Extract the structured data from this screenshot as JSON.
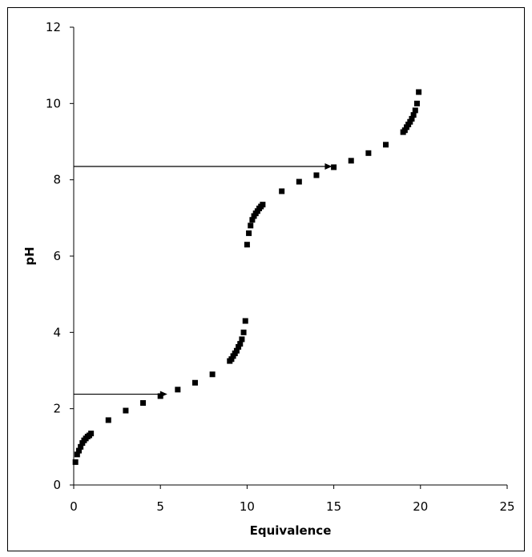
{
  "chart_data": {
    "type": "scatter",
    "title": "",
    "xlabel": "Equivalence",
    "ylabel": "pH",
    "xlim": [
      0,
      25
    ],
    "ylim": [
      0,
      12
    ],
    "xticks": [
      0,
      5,
      10,
      15,
      20,
      25
    ],
    "yticks": [
      0,
      2,
      4,
      6,
      8,
      10,
      12
    ],
    "grid": false,
    "marker_color": "#000000",
    "series": [
      {
        "points": [
          [
            0.1,
            0.6
          ],
          [
            0.2,
            0.8
          ],
          [
            0.3,
            0.9
          ],
          [
            0.4,
            1.0
          ],
          [
            0.5,
            1.1
          ],
          [
            0.6,
            1.17
          ],
          [
            0.7,
            1.22
          ],
          [
            0.8,
            1.27
          ],
          [
            0.9,
            1.3
          ],
          [
            1.0,
            1.35
          ],
          [
            2.0,
            1.7
          ],
          [
            3.0,
            1.95
          ],
          [
            4.0,
            2.15
          ],
          [
            5.0,
            2.33
          ],
          [
            6.0,
            2.5
          ],
          [
            7.0,
            2.68
          ],
          [
            8.0,
            2.9
          ],
          [
            9.0,
            3.25
          ],
          [
            9.1,
            3.3
          ],
          [
            9.2,
            3.38
          ],
          [
            9.3,
            3.45
          ],
          [
            9.4,
            3.52
          ],
          [
            9.5,
            3.62
          ],
          [
            9.6,
            3.7
          ],
          [
            9.7,
            3.82
          ],
          [
            9.8,
            4.0
          ],
          [
            9.9,
            4.3
          ],
          [
            10.0,
            6.3
          ],
          [
            10.1,
            6.6
          ],
          [
            10.2,
            6.8
          ],
          [
            10.3,
            6.95
          ],
          [
            10.4,
            7.05
          ],
          [
            10.5,
            7.12
          ],
          [
            10.6,
            7.18
          ],
          [
            10.7,
            7.25
          ],
          [
            10.8,
            7.3
          ],
          [
            10.9,
            7.35
          ],
          [
            12.0,
            7.7
          ],
          [
            13.0,
            7.95
          ],
          [
            14.0,
            8.12
          ],
          [
            15.0,
            8.33
          ],
          [
            16.0,
            8.5
          ],
          [
            17.0,
            8.7
          ],
          [
            18.0,
            8.92
          ],
          [
            19.0,
            9.25
          ],
          [
            19.1,
            9.3
          ],
          [
            19.2,
            9.38
          ],
          [
            19.3,
            9.45
          ],
          [
            19.4,
            9.52
          ],
          [
            19.5,
            9.6
          ],
          [
            19.6,
            9.7
          ],
          [
            19.7,
            9.82
          ],
          [
            19.8,
            10.0
          ],
          [
            19.9,
            10.3
          ]
        ]
      }
    ],
    "annotations": [
      {
        "type": "arrow",
        "from": [
          0,
          2.38
        ],
        "to": [
          5.4,
          2.38
        ]
      },
      {
        "type": "arrow",
        "from": [
          0,
          8.35
        ],
        "to": [
          14.9,
          8.35
        ]
      }
    ]
  }
}
